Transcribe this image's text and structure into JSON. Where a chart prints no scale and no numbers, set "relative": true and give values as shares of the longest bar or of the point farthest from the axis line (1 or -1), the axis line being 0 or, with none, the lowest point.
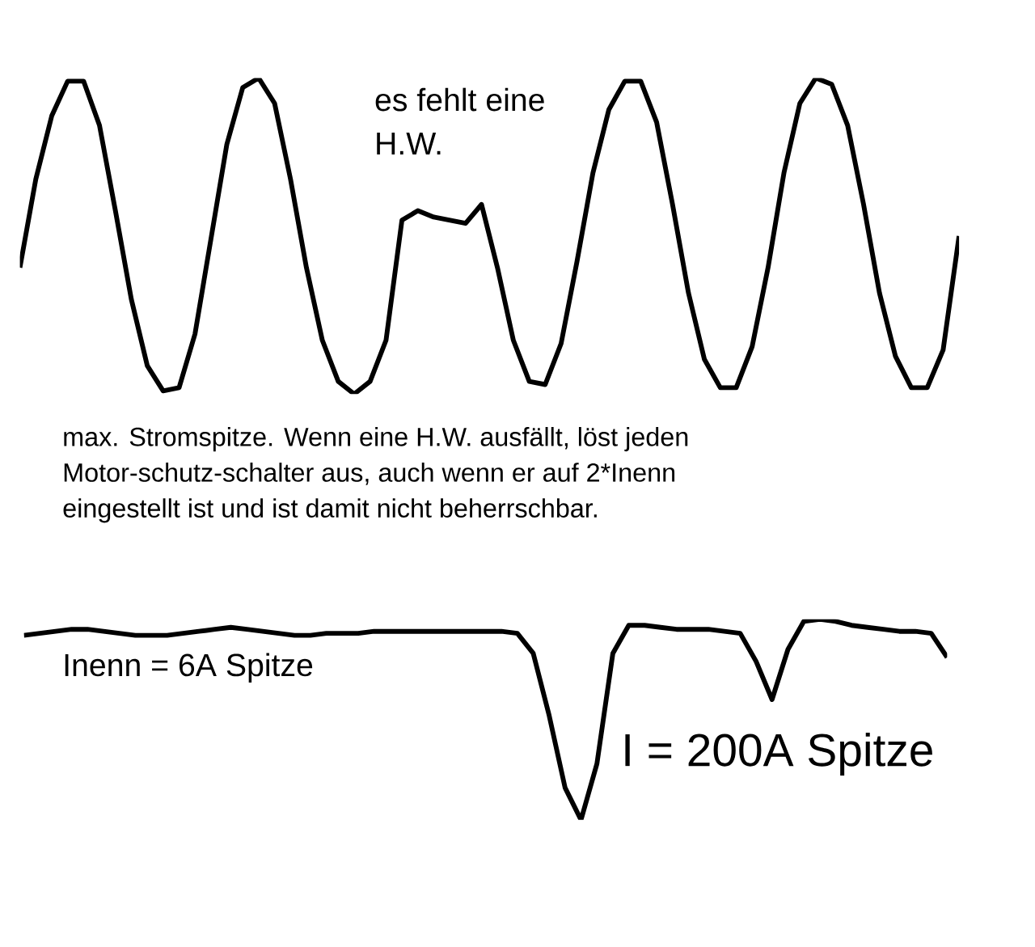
{
  "chart_data": [
    {
      "type": "line",
      "relative": true,
      "categories": [
        null,
        null,
        null,
        null,
        null,
        null,
        null,
        null,
        null,
        null,
        null,
        null,
        null,
        null,
        null,
        null,
        null,
        null,
        null,
        null,
        null,
        null,
        null,
        null,
        null,
        null,
        null,
        null,
        null,
        null,
        null,
        null,
        null,
        null,
        null,
        null,
        null,
        null,
        null,
        null,
        null,
        null,
        null,
        null,
        null,
        null,
        null,
        null,
        null,
        null,
        null,
        null,
        null,
        null,
        null,
        null,
        null,
        null,
        null,
        null
      ],
      "series": [
        {
          "color": "#000000",
          "values": [
            0.4,
            0.68,
            0.88,
            0.99,
            0.99,
            0.85,
            0.58,
            0.3,
            0.09,
            0.01,
            0.02,
            0.19,
            0.49,
            0.79,
            0.97,
            1.0,
            0.92,
            0.68,
            0.4,
            0.17,
            0.04,
            0.0,
            0.04,
            0.17,
            0.55,
            0.58,
            0.56,
            0.55,
            0.54,
            0.6,
            0.4,
            0.17,
            0.04,
            0.03,
            0.16,
            0.42,
            0.7,
            0.9,
            0.99,
            0.99,
            0.86,
            0.6,
            0.32,
            0.11,
            0.02,
            0.02,
            0.15,
            0.4,
            0.7,
            0.92,
            1.0,
            0.98,
            0.85,
            0.6,
            0.32,
            0.12,
            0.02,
            0.02,
            0.14,
            0.5
          ]
        }
      ],
      "annotations": [
        "es fehlt eine H.W."
      ]
    },
    {
      "type": "line",
      "relative": true,
      "categories": [
        null,
        null,
        null,
        null,
        null,
        null,
        null,
        null,
        null,
        null,
        null,
        null,
        null,
        null,
        null,
        null,
        null,
        null,
        null,
        null,
        null,
        null,
        null,
        null,
        null,
        null,
        null,
        null,
        null,
        null,
        null,
        null,
        null,
        null,
        null,
        null,
        null,
        null,
        null,
        null,
        null,
        null,
        null,
        null,
        null,
        null,
        null,
        null,
        null,
        null,
        null,
        null,
        null,
        null,
        null,
        null,
        null,
        null,
        null
      ],
      "series": [
        {
          "color": "#000000",
          "values": [
            0.92,
            0.93,
            0.94,
            0.95,
            0.95,
            0.94,
            0.93,
            0.92,
            0.92,
            0.92,
            0.93,
            0.94,
            0.95,
            0.96,
            0.95,
            0.94,
            0.93,
            0.92,
            0.92,
            0.93,
            0.93,
            0.93,
            0.94,
            0.94,
            0.94,
            0.94,
            0.94,
            0.94,
            0.94,
            0.94,
            0.94,
            0.93,
            0.83,
            0.52,
            0.16,
            0.0,
            0.28,
            0.83,
            0.97,
            0.97,
            0.96,
            0.95,
            0.95,
            0.95,
            0.94,
            0.93,
            0.79,
            0.6,
            0.85,
            0.99,
            1.0,
            0.99,
            0.97,
            0.96,
            0.95,
            0.94,
            0.94,
            0.93,
            0.81
          ]
        }
      ],
      "annotations": [
        "max. Stromspitze. Wenn eine H.W. ausfällt, löst jeden Motor-schutz-schalter aus, auch wenn er auf 2*Inenn eingestellt ist und ist damit nicht beherrschbar.",
        "Inenn = 6A Spitze",
        "I = 200A Spitze"
      ]
    }
  ]
}
